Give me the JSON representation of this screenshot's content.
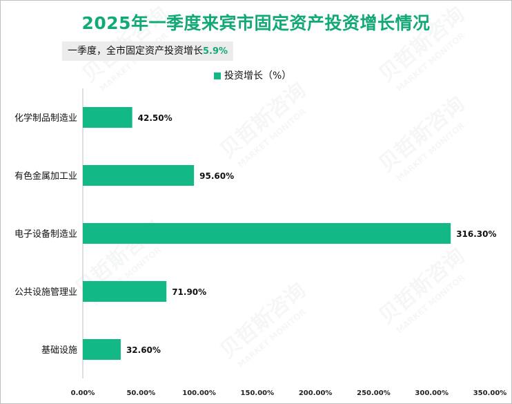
{
  "title": "2025年一季度来宾市固定资产投资增长情况",
  "note": {
    "label": "一季度，全市固定资产投资增长",
    "value": "5.9%"
  },
  "colors": {
    "accent": "#12a878",
    "bar": "#12b886"
  },
  "watermark": {
    "brand": "贝哲斯咨询",
    "sub": "MARKET MONITOR"
  },
  "chart_data": {
    "type": "bar",
    "orientation": "horizontal",
    "categories": [
      "化学制品制造业",
      "有色金属加工业",
      "电子设备制造业",
      "公共设施管理业",
      "基础设施"
    ],
    "series": [
      {
        "name": "投资增长（%）",
        "values": [
          42.5,
          95.6,
          316.3,
          71.9,
          32.6
        ]
      }
    ],
    "data_labels": [
      "42.50%",
      "95.60%",
      "316.30%",
      "71.90%",
      "32.60%"
    ],
    "xlim": [
      0,
      350
    ],
    "x_ticks": [
      0,
      50,
      100,
      150,
      200,
      250,
      300,
      350
    ],
    "x_tick_labels": [
      "0.00%",
      "50.00%",
      "100.00%",
      "150.00%",
      "200.00%",
      "250.00%",
      "300.00%",
      "350.00%"
    ],
    "grid": false,
    "legend_position": "top"
  }
}
